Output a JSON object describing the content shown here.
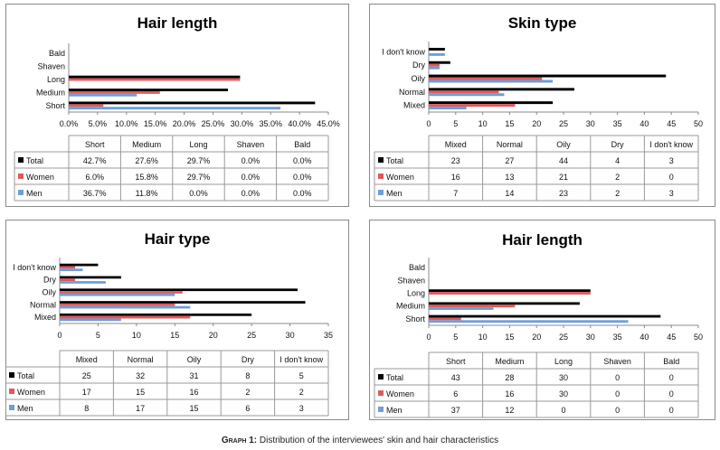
{
  "colors": {
    "Total": "#000000",
    "Women": "#e05a5a",
    "Men": "#6d9fd8"
  },
  "caption": {
    "label": "Graph 1:",
    "text": " Distribution of the interviewees' skin and hair characteristics"
  },
  "chart_data": [
    {
      "type": "bar",
      "orientation": "horizontal",
      "title": "Hair length",
      "categories": [
        "Short",
        "Medium",
        "Long",
        "Shaven",
        "Bald"
      ],
      "series": [
        {
          "name": "Total",
          "values": [
            42.7,
            27.6,
            29.7,
            0.0,
            0.0
          ],
          "labels": [
            "42.7%",
            "27.6%",
            "29.7%",
            "0.0%",
            "0.0%"
          ]
        },
        {
          "name": "Women",
          "values": [
            6.0,
            15.8,
            29.7,
            0.0,
            0.0
          ],
          "labels": [
            "6.0%",
            "15.8%",
            "29.7%",
            "0.0%",
            "0.0%"
          ]
        },
        {
          "name": "Men",
          "values": [
            36.7,
            11.8,
            0.0,
            0.0,
            0.0
          ],
          "labels": [
            "36.7%",
            "11.8%",
            "0.0%",
            "0.0%",
            "0.0%"
          ]
        }
      ],
      "xlim": [
        0,
        45
      ],
      "ticks": [
        0,
        5,
        10,
        15,
        20,
        25,
        30,
        35,
        40,
        45
      ],
      "tick_labels": [
        "0.0%",
        "5.0%",
        "10.0%",
        "15.0%",
        "20.0%",
        "25.0%",
        "30.0%",
        "35.0%",
        "40.0%",
        "45.0%"
      ],
      "data_table": true
    },
    {
      "type": "bar",
      "orientation": "horizontal",
      "title": "Skin type",
      "categories": [
        "Mixed",
        "Normal",
        "Oily",
        "Dry",
        "I don't know"
      ],
      "series": [
        {
          "name": "Total",
          "values": [
            23,
            27,
            44,
            4,
            3
          ],
          "labels": [
            "23",
            "27",
            "44",
            "4",
            "3"
          ]
        },
        {
          "name": "Women",
          "values": [
            16,
            13,
            21,
            2,
            0
          ],
          "labels": [
            "16",
            "13",
            "21",
            "2",
            "0"
          ]
        },
        {
          "name": "Men",
          "values": [
            7,
            14,
            23,
            2,
            3
          ],
          "labels": [
            "7",
            "14",
            "23",
            "2",
            "3"
          ]
        }
      ],
      "xlim": [
        0,
        50
      ],
      "ticks": [
        0,
        5,
        10,
        15,
        20,
        25,
        30,
        35,
        40,
        45,
        50
      ],
      "tick_labels": [
        "0",
        "5",
        "10",
        "15",
        "20",
        "25",
        "30",
        "35",
        "40",
        "45",
        "50"
      ],
      "data_table": true
    },
    {
      "type": "bar",
      "orientation": "horizontal",
      "title": "Hair type",
      "categories": [
        "Mixed",
        "Normal",
        "Oily",
        "Dry",
        "I don't know"
      ],
      "series": [
        {
          "name": "Total",
          "values": [
            25,
            32,
            31,
            8,
            5
          ],
          "labels": [
            "25",
            "32",
            "31",
            "8",
            "5"
          ]
        },
        {
          "name": "Women",
          "values": [
            17,
            15,
            16,
            2,
            2
          ],
          "labels": [
            "17",
            "15",
            "16",
            "2",
            "2"
          ]
        },
        {
          "name": "Men",
          "values": [
            8,
            17,
            15,
            6,
            3
          ],
          "labels": [
            "8",
            "17",
            "15",
            "6",
            "3"
          ]
        }
      ],
      "xlim": [
        0,
        35
      ],
      "ticks": [
        0,
        5,
        10,
        15,
        20,
        25,
        30,
        35
      ],
      "tick_labels": [
        "0",
        "5",
        "10",
        "15",
        "20",
        "25",
        "30",
        "35"
      ],
      "data_table": true
    },
    {
      "type": "bar",
      "orientation": "horizontal",
      "title": "Hair length",
      "categories": [
        "Short",
        "Medium",
        "Long",
        "Shaven",
        "Bald"
      ],
      "series": [
        {
          "name": "Total",
          "values": [
            43,
            28,
            30,
            0,
            0
          ],
          "labels": [
            "43",
            "28",
            "30",
            "0",
            "0"
          ]
        },
        {
          "name": "Women",
          "values": [
            6,
            16,
            30,
            0,
            0
          ],
          "labels": [
            "6",
            "16",
            "30",
            "0",
            "0"
          ]
        },
        {
          "name": "Men",
          "values": [
            37,
            12,
            0,
            0,
            0
          ],
          "labels": [
            "37",
            "12",
            "0",
            "0",
            "0"
          ]
        }
      ],
      "xlim": [
        0,
        50
      ],
      "ticks": [
        0,
        5,
        10,
        15,
        20,
        25,
        30,
        35,
        40,
        45,
        50
      ],
      "tick_labels": [
        "0",
        "5",
        "10",
        "15",
        "20",
        "25",
        "30",
        "35",
        "40",
        "45",
        "50"
      ],
      "data_table": true
    }
  ]
}
